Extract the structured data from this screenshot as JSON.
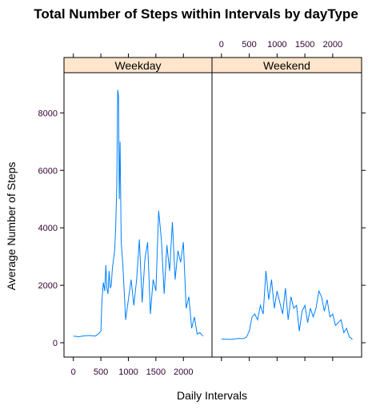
{
  "chart_data": {
    "type": "line",
    "title": "Total Number of Steps within Intervals by dayType",
    "xlabel": "Daily Intervals",
    "ylabel": "Average Number of Steps",
    "xlim": [
      -170,
      2520
    ],
    "ylim": [
      -500,
      9400
    ],
    "x_ticks": [
      0,
      500,
      1000,
      1500,
      2000
    ],
    "x_tick_labels": [
      "0",
      "500",
      "1000",
      "1500",
      "2000"
    ],
    "y_ticks": [
      0,
      2000,
      4000,
      6000,
      8000
    ],
    "y_tick_labels": [
      "0",
      "2000",
      "4000",
      "6000",
      "8000"
    ],
    "grid": false,
    "line_color": "#0080ff",
    "strip_color": "#ffe5cc",
    "panels": [
      {
        "name": "Weekday",
        "x": [
          0,
          100,
          200,
          300,
          400,
          450,
          500,
          520,
          545,
          570,
          590,
          610,
          630,
          650,
          670,
          690,
          710,
          730,
          750,
          770,
          790,
          805,
          820,
          835,
          850,
          870,
          900,
          950,
          1000,
          1050,
          1100,
          1150,
          1200,
          1250,
          1300,
          1350,
          1400,
          1450,
          1500,
          1550,
          1600,
          1650,
          1700,
          1750,
          1800,
          1850,
          1900,
          1950,
          2000,
          2050,
          2100,
          2150,
          2200,
          2250,
          2300,
          2355
        ],
        "y": [
          230,
          210,
          240,
          250,
          230,
          300,
          400,
          1500,
          2100,
          1800,
          2700,
          1900,
          1700,
          2500,
          1900,
          2000,
          2600,
          2900,
          3200,
          4000,
          5500,
          8800,
          8600,
          5000,
          7000,
          3500,
          2700,
          800,
          1500,
          2200,
          1300,
          2200,
          3600,
          1400,
          2900,
          3500,
          1000,
          2200,
          1800,
          4600,
          3600,
          1700,
          3400,
          2500,
          4200,
          2200,
          3200,
          2800,
          3500,
          1200,
          1600,
          500,
          900,
          300,
          350,
          230
        ]
      },
      {
        "name": "Weekend",
        "x": [
          0,
          100,
          200,
          300,
          400,
          450,
          500,
          550,
          600,
          650,
          700,
          750,
          800,
          850,
          900,
          950,
          1000,
          1050,
          1100,
          1150,
          1200,
          1250,
          1300,
          1350,
          1400,
          1450,
          1500,
          1550,
          1600,
          1650,
          1700,
          1750,
          1800,
          1850,
          1900,
          1950,
          2000,
          2050,
          2100,
          2150,
          2200,
          2250,
          2300,
          2355
        ],
        "y": [
          130,
          120,
          120,
          150,
          140,
          200,
          400,
          900,
          1000,
          800,
          1300,
          1000,
          2500,
          1500,
          2200,
          1200,
          1800,
          1400,
          1000,
          1900,
          800,
          1600,
          1200,
          1300,
          400,
          1100,
          1300,
          700,
          1200,
          900,
          1200,
          1800,
          1600,
          1100,
          1500,
          900,
          1000,
          600,
          700,
          800,
          350,
          500,
          200,
          120
        ]
      }
    ]
  }
}
